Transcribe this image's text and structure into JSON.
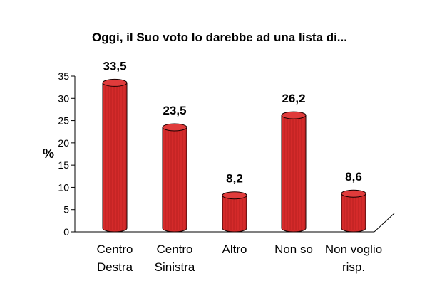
{
  "chart_data": {
    "type": "bar",
    "title": "Oggi, il Suo voto lo darebbe ad una lista di...",
    "ylabel": "%",
    "xlabel": "",
    "ylim": [
      0,
      35
    ],
    "yticks": [
      "0",
      "5",
      "10",
      "15",
      "20",
      "25",
      "30",
      "35"
    ],
    "categories": [
      [
        "Centro",
        "Destra"
      ],
      [
        "Centro",
        "Sinistra"
      ],
      [
        "Altro"
      ],
      [
        "Non so"
      ],
      [
        "Non voglio",
        "risp."
      ]
    ],
    "values": [
      33.5,
      23.5,
      8.2,
      26.2,
      8.6
    ],
    "data_labels": [
      "33,5",
      "23,5",
      "8,2",
      "26,2",
      "8,6"
    ],
    "bar_color": "#d42a2a",
    "bar_shape": "cylinder",
    "grid": false,
    "legend": "none"
  }
}
